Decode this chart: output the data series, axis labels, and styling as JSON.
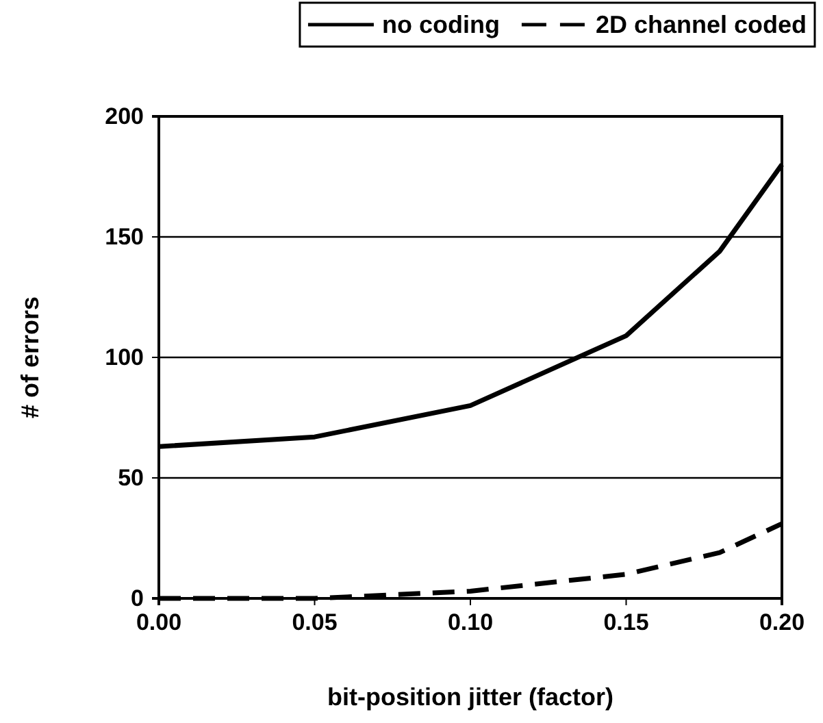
{
  "chart_data": {
    "type": "line",
    "xlabel": "bit-position jitter (factor)",
    "ylabel": "# of errors",
    "x": [
      0,
      0.05,
      0.1,
      0.15,
      0.18,
      0.2
    ],
    "series": [
      {
        "name": "no coding",
        "color": "#000000",
        "values": [
          63,
          67,
          80,
          109,
          144,
          180
        ],
        "line_style": "solid"
      },
      {
        "name": "2D channel coded",
        "color": "#000000",
        "values": [
          0,
          0,
          3,
          10,
          19,
          31
        ],
        "line_style": "dashed"
      }
    ],
    "xlim": [
      0,
      0.2
    ],
    "xticks": [
      {
        "value": 0,
        "label": "0.00"
      },
      {
        "value": 0.05,
        "label": "0.05"
      },
      {
        "value": 0.1,
        "label": "0.10"
      },
      {
        "value": 0.15,
        "label": "0.15"
      },
      {
        "value": 0.2,
        "label": "0.20"
      }
    ],
    "ylim": [
      0,
      200
    ],
    "yticks": [
      0,
      50,
      100,
      150,
      200
    ],
    "grid": "y",
    "legend": "top",
    "marker": "none"
  }
}
